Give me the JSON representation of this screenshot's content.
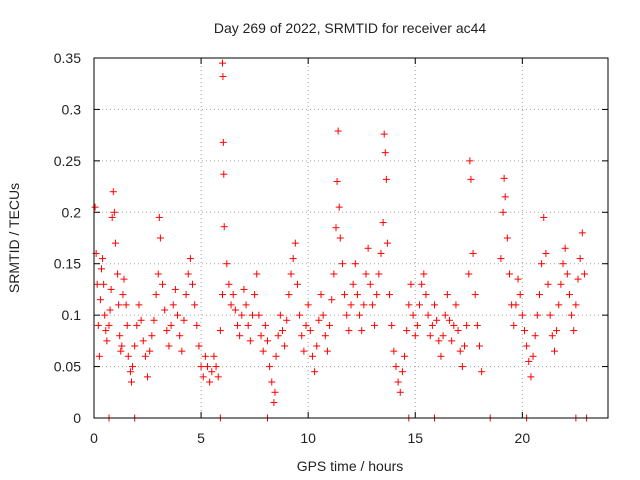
{
  "chart_data": {
    "type": "scatter",
    "title": "Day 269 of 2022, SRMTID for receiver ac44",
    "xlabel": "GPS time / hours",
    "ylabel": "SRMTID / TECUs",
    "xlim": [
      0,
      24
    ],
    "ylim": [
      0,
      0.35
    ],
    "xticks": [
      0,
      5,
      10,
      15,
      20
    ],
    "xtick_labels": [
      "0",
      "5",
      "10",
      "15",
      "20"
    ],
    "yticks": [
      0,
      0.05,
      0.1,
      0.15,
      0.2,
      0.25,
      0.3,
      0.35
    ],
    "ytick_labels": [
      "0",
      "0.05",
      "0.1",
      "0.15",
      "0.2",
      "0.25",
      "0.3",
      "0.35"
    ],
    "grid": true,
    "marker": "+",
    "color": "#ff0000",
    "series": [
      {
        "name": "SRMTID",
        "points": [
          [
            0.05,
            0.205
          ],
          [
            0.1,
            0.16
          ],
          [
            0.15,
            0.13
          ],
          [
            0.2,
            0.09
          ],
          [
            0.25,
            0.06
          ],
          [
            0.3,
            0.115
          ],
          [
            0.35,
            0.145
          ],
          [
            0.4,
            0.155
          ],
          [
            0.45,
            0.13
          ],
          [
            0.5,
            0.1
          ],
          [
            0.55,
            0.085
          ],
          [
            0.6,
            0.075
          ],
          [
            0.7,
            0.09
          ],
          [
            0.75,
            0.105
          ],
          [
            0.8,
            0.125
          ],
          [
            0.85,
            0.195
          ],
          [
            0.9,
            0.22
          ],
          [
            0.95,
            0.2
          ],
          [
            1.0,
            0.17
          ],
          [
            1.1,
            0.14
          ],
          [
            1.15,
            0.11
          ],
          [
            1.2,
            0.08
          ],
          [
            1.25,
            0.065
          ],
          [
            1.3,
            0.07
          ],
          [
            1.35,
            0.12
          ],
          [
            1.4,
            0.135
          ],
          [
            1.5,
            0.11
          ],
          [
            1.55,
            0.09
          ],
          [
            1.6,
            0.06
          ],
          [
            1.7,
            0.045
          ],
          [
            1.75,
            0.035
          ],
          [
            1.8,
            0.05
          ],
          [
            1.9,
            0.07
          ],
          [
            2.0,
            0.09
          ],
          [
            2.1,
            0.11
          ],
          [
            2.2,
            0.095
          ],
          [
            2.3,
            0.075
          ],
          [
            2.4,
            0.06
          ],
          [
            2.5,
            0.04
          ],
          [
            2.6,
            0.065
          ],
          [
            2.7,
            0.08
          ],
          [
            2.8,
            0.095
          ],
          [
            2.9,
            0.12
          ],
          [
            3.0,
            0.14
          ],
          [
            3.05,
            0.195
          ],
          [
            3.1,
            0.175
          ],
          [
            3.2,
            0.13
          ],
          [
            3.3,
            0.105
          ],
          [
            3.4,
            0.085
          ],
          [
            3.5,
            0.07
          ],
          [
            3.6,
            0.09
          ],
          [
            3.7,
            0.11
          ],
          [
            3.8,
            0.125
          ],
          [
            3.9,
            0.1
          ],
          [
            4.0,
            0.08
          ],
          [
            4.1,
            0.065
          ],
          [
            4.2,
            0.095
          ],
          [
            4.3,
            0.12
          ],
          [
            4.4,
            0.14
          ],
          [
            4.5,
            0.155
          ],
          [
            4.6,
            0.13
          ],
          [
            4.7,
            0.11
          ],
          [
            4.8,
            0.09
          ],
          [
            4.9,
            0.07
          ],
          [
            5.0,
            0.05
          ],
          [
            5.1,
            0.04
          ],
          [
            5.2,
            0.06
          ],
          [
            5.3,
            0.05
          ],
          [
            5.4,
            0.035
          ],
          [
            5.5,
            0.045
          ],
          [
            5.6,
            0.06
          ],
          [
            5.7,
            0.05
          ],
          [
            5.8,
            0.04
          ],
          [
            5.9,
            0.085
          ],
          [
            6.0,
            0.12
          ],
          [
            6.0,
            0.345
          ],
          [
            6.02,
            0.332
          ],
          [
            6.04,
            0.268
          ],
          [
            6.06,
            0.237
          ],
          [
            6.08,
            0.186
          ],
          [
            6.2,
            0.15
          ],
          [
            6.3,
            0.13
          ],
          [
            6.4,
            0.11
          ],
          [
            6.5,
            0.12
          ],
          [
            6.6,
            0.105
          ],
          [
            6.7,
            0.09
          ],
          [
            6.8,
            0.08
          ],
          [
            6.9,
            0.1
          ],
          [
            7.0,
            0.125
          ],
          [
            7.1,
            0.11
          ],
          [
            7.2,
            0.09
          ],
          [
            7.3,
            0.075
          ],
          [
            7.4,
            0.1
          ],
          [
            7.5,
            0.12
          ],
          [
            7.6,
            0.14
          ],
          [
            7.7,
            0.1
          ],
          [
            7.8,
            0.08
          ],
          [
            7.9,
            0.065
          ],
          [
            8.0,
            0.09
          ],
          [
            8.1,
            0.075
          ],
          [
            8.2,
            0.05
          ],
          [
            8.3,
            0.035
          ],
          [
            8.4,
            0.015
          ],
          [
            8.45,
            0.025
          ],
          [
            8.5,
            0.06
          ],
          [
            8.6,
            0.08
          ],
          [
            8.7,
            0.1
          ],
          [
            8.8,
            0.085
          ],
          [
            8.9,
            0.07
          ],
          [
            9.0,
            0.095
          ],
          [
            9.1,
            0.12
          ],
          [
            9.2,
            0.14
          ],
          [
            9.3,
            0.155
          ],
          [
            9.4,
            0.17
          ],
          [
            9.5,
            0.13
          ],
          [
            9.6,
            0.1
          ],
          [
            9.7,
            0.08
          ],
          [
            9.8,
            0.065
          ],
          [
            9.9,
            0.09
          ],
          [
            10.0,
            0.11
          ],
          [
            10.1,
            0.085
          ],
          [
            10.2,
            0.06
          ],
          [
            10.3,
            0.045
          ],
          [
            10.4,
            0.07
          ],
          [
            10.5,
            0.095
          ],
          [
            10.6,
            0.12
          ],
          [
            10.7,
            0.1
          ],
          [
            10.8,
            0.08
          ],
          [
            10.9,
            0.065
          ],
          [
            11.0,
            0.09
          ],
          [
            11.1,
            0.115
          ],
          [
            11.2,
            0.14
          ],
          [
            11.3,
            0.185
          ],
          [
            11.35,
            0.23
          ],
          [
            11.4,
            0.279
          ],
          [
            11.45,
            0.205
          ],
          [
            11.5,
            0.175
          ],
          [
            11.6,
            0.15
          ],
          [
            11.7,
            0.12
          ],
          [
            11.8,
            0.1
          ],
          [
            11.9,
            0.085
          ],
          [
            12.0,
            0.11
          ],
          [
            12.1,
            0.13
          ],
          [
            12.2,
            0.15
          ],
          [
            12.3,
            0.12
          ],
          [
            12.4,
            0.1
          ],
          [
            12.5,
            0.085
          ],
          [
            12.6,
            0.11
          ],
          [
            12.7,
            0.14
          ],
          [
            12.8,
            0.165
          ],
          [
            12.9,
            0.13
          ],
          [
            13.0,
            0.11
          ],
          [
            13.1,
            0.09
          ],
          [
            13.2,
            0.12
          ],
          [
            13.3,
            0.14
          ],
          [
            13.4,
            0.16
          ],
          [
            13.5,
            0.19
          ],
          [
            13.55,
            0.276
          ],
          [
            13.6,
            0.258
          ],
          [
            13.65,
            0.232
          ],
          [
            13.7,
            0.17
          ],
          [
            13.8,
            0.12
          ],
          [
            13.9,
            0.09
          ],
          [
            14.0,
            0.065
          ],
          [
            14.1,
            0.05
          ],
          [
            14.2,
            0.035
          ],
          [
            14.3,
            0.025
          ],
          [
            14.4,
            0.045
          ],
          [
            14.5,
            0.06
          ],
          [
            14.6,
            0.085
          ],
          [
            14.7,
            0.11
          ],
          [
            14.8,
            0.13
          ],
          [
            14.9,
            0.1
          ],
          [
            15.0,
            0.08
          ],
          [
            15.1,
            0.09
          ],
          [
            15.2,
            0.11
          ],
          [
            15.3,
            0.13
          ],
          [
            15.4,
            0.14
          ],
          [
            15.5,
            0.12
          ],
          [
            15.6,
            0.1
          ],
          [
            15.7,
            0.08
          ],
          [
            15.8,
            0.09
          ],
          [
            15.9,
            0.11
          ],
          [
            16.0,
            0.095
          ],
          [
            16.1,
            0.075
          ],
          [
            16.2,
            0.06
          ],
          [
            16.3,
            0.08
          ],
          [
            16.4,
            0.1
          ],
          [
            16.5,
            0.12
          ],
          [
            16.6,
            0.095
          ],
          [
            16.7,
            0.075
          ],
          [
            16.8,
            0.09
          ],
          [
            16.9,
            0.11
          ],
          [
            17.0,
            0.085
          ],
          [
            17.1,
            0.065
          ],
          [
            17.2,
            0.05
          ],
          [
            17.3,
            0.07
          ],
          [
            17.4,
            0.09
          ],
          [
            17.5,
            0.14
          ],
          [
            17.55,
            0.25
          ],
          [
            17.6,
            0.232
          ],
          [
            17.7,
            0.16
          ],
          [
            17.8,
            0.12
          ],
          [
            17.9,
            0.09
          ],
          [
            18.0,
            0.07
          ],
          [
            18.1,
            0.045
          ],
          [
            19.0,
            0.155
          ],
          [
            19.1,
            0.2
          ],
          [
            19.15,
            0.233
          ],
          [
            19.2,
            0.215
          ],
          [
            19.3,
            0.175
          ],
          [
            19.4,
            0.14
          ],
          [
            19.5,
            0.11
          ],
          [
            19.6,
            0.09
          ],
          [
            19.7,
            0.11
          ],
          [
            19.8,
            0.135
          ],
          [
            19.9,
            0.12
          ],
          [
            20.0,
            0.1
          ],
          [
            20.1,
            0.085
          ],
          [
            20.2,
            0.07
          ],
          [
            20.3,
            0.055
          ],
          [
            20.4,
            0.04
          ],
          [
            20.5,
            0.06
          ],
          [
            20.6,
            0.08
          ],
          [
            20.7,
            0.1
          ],
          [
            20.8,
            0.12
          ],
          [
            20.9,
            0.15
          ],
          [
            21.0,
            0.195
          ],
          [
            21.1,
            0.16
          ],
          [
            21.2,
            0.13
          ],
          [
            21.3,
            0.1
          ],
          [
            21.4,
            0.08
          ],
          [
            21.5,
            0.065
          ],
          [
            21.6,
            0.085
          ],
          [
            21.7,
            0.11
          ],
          [
            21.8,
            0.13
          ],
          [
            21.9,
            0.15
          ],
          [
            22.0,
            0.165
          ],
          [
            22.1,
            0.14
          ],
          [
            22.2,
            0.12
          ],
          [
            22.3,
            0.1
          ],
          [
            22.4,
            0.085
          ],
          [
            22.5,
            0.11
          ],
          [
            22.6,
            0.135
          ],
          [
            22.7,
            0.155
          ],
          [
            22.8,
            0.18
          ],
          [
            22.9,
            0.14
          ]
        ]
      }
    ],
    "zero_markers": [
      0.7,
      1.9,
      5.9,
      8.1,
      14.7,
      15.9,
      18.5,
      20.2,
      22.5,
      23.0
    ]
  }
}
